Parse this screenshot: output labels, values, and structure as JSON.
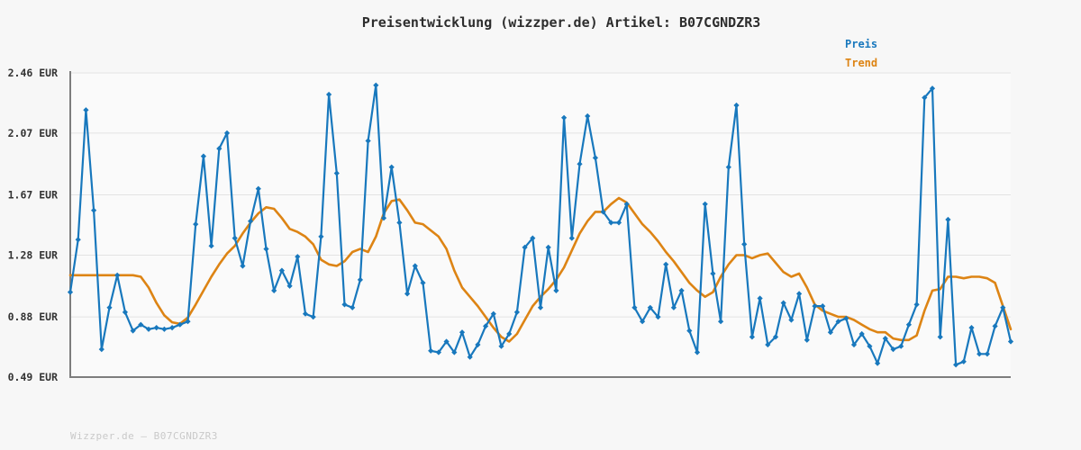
{
  "page": {
    "watermark": "Wizzper.de – B07CGNDZR3"
  },
  "legend": {
    "items": [
      {
        "label": "Preis",
        "color": "#1878bd"
      },
      {
        "label": "Trend",
        "color": "#dd8414"
      }
    ]
  },
  "chart_data": {
    "type": "line",
    "title": "Preisentwicklung (wizzper.de) Artikel: B07CGNDZR3",
    "currency_unit": "EUR",
    "grid": true,
    "legend_position": "top-right",
    "x_axis": {
      "tick_labels": []
    },
    "y_axis": {
      "range": [
        0.49,
        2.46
      ],
      "ticks": [
        {
          "value": 2.46,
          "label": "2.46 EUR"
        },
        {
          "value": 2.07,
          "label": "2.07 EUR"
        },
        {
          "value": 1.67,
          "label": "1.67 EUR"
        },
        {
          "value": 1.28,
          "label": "1.28 EUR"
        },
        {
          "value": 0.88,
          "label": "0.88 EUR"
        },
        {
          "value": 0.49,
          "label": "0.49 EUR"
        }
      ]
    },
    "series": [
      {
        "name": "Preis",
        "color": "#1878bd",
        "marker": "diamond",
        "values": [
          1.04,
          1.38,
          2.22,
          1.57,
          0.67,
          0.94,
          1.15,
          0.91,
          0.79,
          0.83,
          0.8,
          0.81,
          0.8,
          0.81,
          0.83,
          0.85,
          1.48,
          1.92,
          1.34,
          1.97,
          2.07,
          1.39,
          1.21,
          1.5,
          1.71,
          1.32,
          1.05,
          1.18,
          1.08,
          1.27,
          0.9,
          0.88,
          1.4,
          2.32,
          1.81,
          0.96,
          0.94,
          1.12,
          2.02,
          2.38,
          1.52,
          1.85,
          1.49,
          1.03,
          1.21,
          1.1,
          0.66,
          0.65,
          0.72,
          0.65,
          0.78,
          0.62,
          0.7,
          0.82,
          0.9,
          0.69,
          0.77,
          0.91,
          1.33,
          1.39,
          0.94,
          1.33,
          1.05,
          2.17,
          1.39,
          1.87,
          2.18,
          1.91,
          1.56,
          1.49,
          1.49,
          1.61,
          0.94,
          0.85,
          0.94,
          0.88,
          1.22,
          0.94,
          1.05,
          0.79,
          0.65,
          1.61,
          1.16,
          0.85,
          1.85,
          2.25,
          1.35,
          0.75,
          1.0,
          0.7,
          0.75,
          0.97,
          0.86,
          1.03,
          0.73,
          0.95,
          0.95,
          0.78,
          0.85,
          0.87,
          0.7,
          0.77,
          0.69,
          0.58,
          0.74,
          0.67,
          0.69,
          0.83,
          0.96,
          2.3,
          2.36,
          0.75,
          1.51,
          0.57,
          0.59,
          0.81,
          0.64,
          0.64,
          0.82,
          0.94,
          0.72
        ]
      },
      {
        "name": "Trend",
        "color": "#dd8414",
        "marker": "none",
        "values": [
          1.15,
          1.15,
          1.15,
          1.15,
          1.15,
          1.15,
          1.15,
          1.15,
          1.15,
          1.14,
          1.07,
          0.97,
          0.89,
          0.845,
          0.835,
          0.875,
          0.96,
          1.05,
          1.14,
          1.22,
          1.29,
          1.34,
          1.42,
          1.49,
          1.55,
          1.59,
          1.58,
          1.52,
          1.45,
          1.43,
          1.4,
          1.35,
          1.25,
          1.22,
          1.21,
          1.24,
          1.3,
          1.32,
          1.3,
          1.4,
          1.55,
          1.63,
          1.64,
          1.57,
          1.49,
          1.48,
          1.44,
          1.4,
          1.32,
          1.18,
          1.07,
          1.01,
          0.95,
          0.88,
          0.81,
          0.75,
          0.72,
          0.77,
          0.86,
          0.95,
          1.01,
          1.06,
          1.12,
          1.2,
          1.31,
          1.42,
          1.5,
          1.56,
          1.56,
          1.61,
          1.65,
          1.62,
          1.55,
          1.48,
          1.43,
          1.37,
          1.3,
          1.24,
          1.17,
          1.1,
          1.05,
          1.01,
          1.04,
          1.14,
          1.22,
          1.28,
          1.28,
          1.26,
          1.28,
          1.29,
          1.23,
          1.17,
          1.14,
          1.16,
          1.07,
          0.96,
          0.92,
          0.9,
          0.88,
          0.88,
          0.86,
          0.83,
          0.8,
          0.78,
          0.78,
          0.74,
          0.73,
          0.73,
          0.76,
          0.92,
          1.05,
          1.06,
          1.14,
          1.14,
          1.13,
          1.14,
          1.14,
          1.13,
          1.1,
          0.95,
          0.8
        ]
      }
    ]
  }
}
